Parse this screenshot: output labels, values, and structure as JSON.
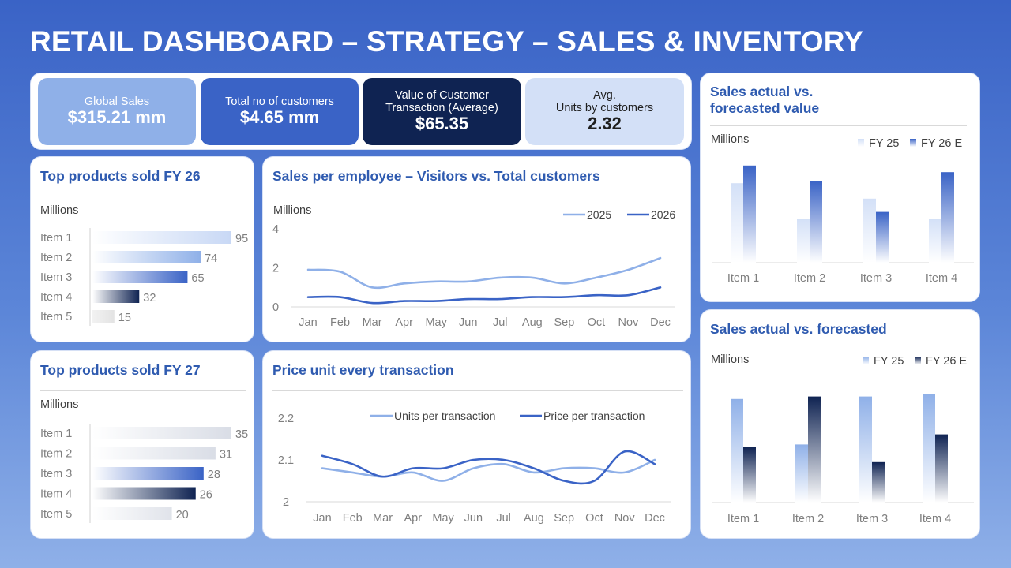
{
  "title": "RETAIL DASHBOARD – STRATEGY – SALES & INVENTORY",
  "kpis": [
    {
      "label": "Global Sales",
      "value": "$315.21 mm",
      "bg": "#8fb0e8",
      "fg": "#ffffff"
    },
    {
      "label": "Total  no of customers",
      "value": "$4.65 mm",
      "bg": "#3a63c6",
      "fg": "#ffffff"
    },
    {
      "label": "Value of Customer\nTransaction (Average)",
      "value": "$65.35",
      "bg": "#0f2352",
      "fg": "#ffffff"
    },
    {
      "label": "Avg.\nUnits by customers",
      "value": "2.32",
      "bg": "#d3e0f7",
      "fg": "#1f1f1f"
    }
  ],
  "colors": {
    "light_blue": "#8fb0e8",
    "mid_blue": "#3a63c6",
    "navy": "#0f2352",
    "title_blue": "#2f5bb0"
  },
  "chart_data": [
    {
      "id": "top_fy26",
      "type": "bar",
      "orientation": "horizontal",
      "title": "Top products sold FY 26",
      "unit_label": "Millions",
      "categories": [
        "Item 1",
        "Item 2",
        "Item 3",
        "Item 4",
        "Item 5"
      ],
      "values": [
        95,
        74,
        65,
        32,
        15
      ],
      "xlim": [
        0,
        95
      ]
    },
    {
      "id": "top_fy27",
      "type": "bar",
      "orientation": "horizontal",
      "title": "Top products sold FY 27",
      "unit_label": "Millions",
      "categories": [
        "Item 1",
        "Item 2",
        "Item 3",
        "Item 4",
        "Item 5"
      ],
      "values": [
        35,
        31,
        28,
        26,
        20
      ],
      "xlim": [
        0,
        35
      ]
    },
    {
      "id": "sales_per_employee",
      "type": "line",
      "title": "Sales per employee – Visitors vs. Total customers",
      "unit_label": "Millions",
      "x": [
        "Jan",
        "Feb",
        "Mar",
        "Apr",
        "May",
        "Jun",
        "Jul",
        "Aug",
        "Sep",
        "Oct",
        "Nov",
        "Dec"
      ],
      "ylim": [
        0,
        4
      ],
      "yticks": [
        "0",
        "2",
        "4"
      ],
      "legend_position": "top-right",
      "series": [
        {
          "name": "2025",
          "color": "#8fb0e8",
          "values": [
            1.9,
            1.8,
            1.0,
            1.2,
            1.3,
            1.3,
            1.5,
            1.5,
            1.2,
            1.5,
            1.9,
            2.5
          ]
        },
        {
          "name": "2026",
          "color": "#3a63c6",
          "values": [
            0.5,
            0.5,
            0.2,
            0.3,
            0.3,
            0.4,
            0.4,
            0.5,
            0.5,
            0.6,
            0.6,
            1.0
          ]
        }
      ]
    },
    {
      "id": "price_unit",
      "type": "line",
      "title": "Price unit every transaction",
      "x": [
        "Jan",
        "Feb",
        "Mar",
        "Apr",
        "May",
        "Jun",
        "Jul",
        "Aug",
        "Sep",
        "Oct",
        "Nov",
        "Dec"
      ],
      "ylim": [
        2,
        2.2
      ],
      "yticks": [
        "2",
        "2.1",
        "2.2"
      ],
      "legend_position": "top",
      "series": [
        {
          "name": "Units per transaction",
          "color": "#8fb0e8",
          "values": [
            2.08,
            2.07,
            2.06,
            2.07,
            2.05,
            2.08,
            2.09,
            2.07,
            2.08,
            2.08,
            2.07,
            2.1
          ]
        },
        {
          "name": "Price per transaction",
          "color": "#3a63c6",
          "values": [
            2.11,
            2.09,
            2.06,
            2.08,
            2.08,
            2.1,
            2.1,
            2.08,
            2.05,
            2.05,
            2.12,
            2.09
          ]
        }
      ]
    },
    {
      "id": "actual_vs_forecast_value",
      "type": "bar",
      "title": "Sales actual vs.\nforecasted value",
      "unit_label": "Millions",
      "categories": [
        "Item 1",
        "Item 2",
        "Item 3",
        "Item 4"
      ],
      "legend_position": "top-right",
      "ylim": [
        0,
        5
      ],
      "series": [
        {
          "name": "FY 25",
          "color": "#d3e0f7",
          "values": [
            3.6,
            2.0,
            2.9,
            2.0
          ]
        },
        {
          "name": "FY 26 E",
          "color": "#3a63c6",
          "values": [
            4.4,
            3.7,
            2.3,
            4.1
          ]
        }
      ]
    },
    {
      "id": "actual_vs_forecast",
      "type": "bar",
      "title": "Sales actual vs. forecasted",
      "unit_label": "Millions",
      "categories": [
        "Item 1",
        "Item 2",
        "Item 3",
        "Item 4"
      ],
      "legend_position": "top-right",
      "ylim": [
        0,
        5
      ],
      "series": [
        {
          "name": "FY 25",
          "color": "#8fb0e8",
          "values": [
            4.1,
            2.3,
            4.2,
            4.3
          ]
        },
        {
          "name": "FY 26 E",
          "color": "#0f2352",
          "values": [
            2.2,
            4.2,
            1.6,
            2.7
          ]
        }
      ]
    }
  ]
}
